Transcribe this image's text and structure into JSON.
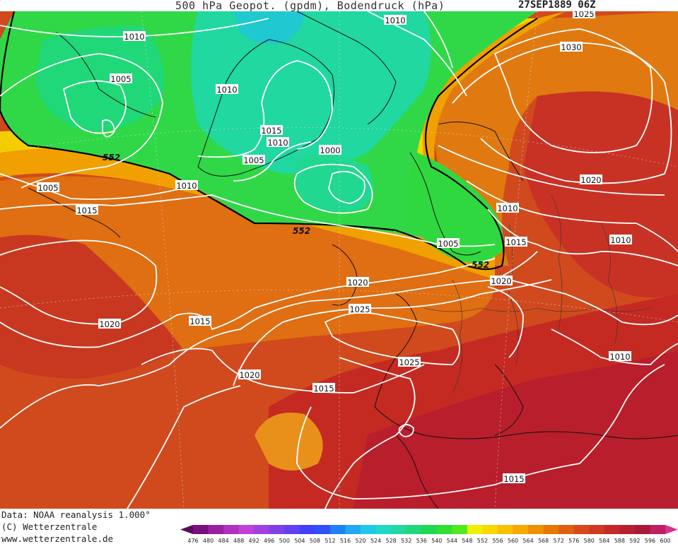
{
  "header": {
    "title": "500 hPa Geopot. (gpdm), Bodendruck (hPa)",
    "date": "27SEP1889 06Z"
  },
  "footer": {
    "line1": "Data: NOAA reanalysis 1.000°",
    "line2": "(C) Wetterzentrale",
    "line3": "www.wetterzentrale.de"
  },
  "map": {
    "isobar_labels": [
      "1010",
      "1010",
      "1005",
      "1010",
      "1015",
      "1010",
      "1005",
      "1000",
      "1005",
      "1010",
      "1015",
      "1020",
      "1015",
      "1020",
      "1025",
      "1025",
      "1020",
      "1015",
      "1015",
      "1025",
      "1030",
      "1020",
      "1010",
      "1010",
      "1005",
      "1015",
      "1020",
      "1010",
      "1015"
    ],
    "geopotential_labels": [
      "552",
      "552",
      "552"
    ]
  },
  "legend": {
    "ticks": [
      "476",
      "480",
      "484",
      "488",
      "492",
      "496",
      "500",
      "504",
      "508",
      "512",
      "516",
      "520",
      "524",
      "528",
      "532",
      "536",
      "540",
      "544",
      "548",
      "552",
      "556",
      "560",
      "564",
      "568",
      "572",
      "576",
      "580",
      "584",
      "588",
      "592",
      "596",
      "600"
    ],
    "colors": [
      "#5a0a5a",
      "#7a1080",
      "#9a20a0",
      "#b030c0",
      "#c040d8",
      "#a040e0",
      "#8040e8",
      "#6040f0",
      "#4040f8",
      "#3050f8",
      "#2080f8",
      "#20a8f0",
      "#20c8e8",
      "#20d8c8",
      "#20d8a0",
      "#20d878",
      "#20d850",
      "#30e030",
      "#50e820",
      "#f0f000",
      "#f8d800",
      "#f8c000",
      "#f8a800",
      "#f09000",
      "#e87800",
      "#e06010",
      "#d84818",
      "#d03820",
      "#c82828",
      "#b82030",
      "#a81838",
      "#c02060",
      "#d83090"
    ]
  }
}
